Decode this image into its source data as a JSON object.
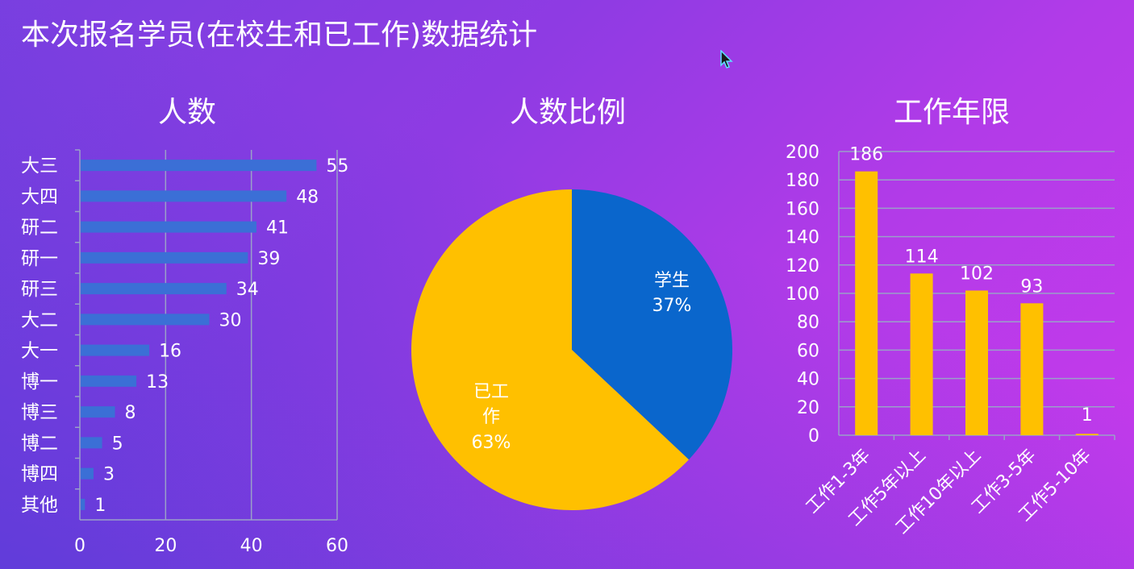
{
  "page": {
    "title": "本次报名学员(在校生和已工作)数据统计"
  },
  "chart_data": [
    {
      "type": "bar",
      "orientation": "horizontal",
      "title": "人数",
      "categories": [
        "大三",
        "大四",
        "研二",
        "研一",
        "研三",
        "大二",
        "大一",
        "博一",
        "博三",
        "博二",
        "博四",
        "其他"
      ],
      "values": [
        55,
        48,
        41,
        39,
        34,
        30,
        16,
        13,
        8,
        5,
        3,
        1
      ],
      "xlim": [
        0,
        60
      ],
      "xticks": [
        0,
        20,
        40,
        60
      ],
      "grid": true,
      "data_labels": true,
      "color": "#3b6fd6"
    },
    {
      "type": "pie",
      "title": "人数比例",
      "slices": [
        {
          "label": "学生",
          "value": 37,
          "value_label": "37%",
          "color": "#0a66cc"
        },
        {
          "label": "已工作",
          "value": 63,
          "value_label": "63%",
          "color": "#ffc000"
        }
      ],
      "start_angle_deg": 0,
      "direction": "clockwise"
    },
    {
      "type": "bar",
      "orientation": "vertical",
      "title": "工作年限",
      "categories": [
        "工作1-3年",
        "工作5年以上",
        "工作10年以上",
        "工作3-5年",
        "工作5-10年"
      ],
      "values": [
        186,
        114,
        102,
        93,
        1
      ],
      "ylim": [
        0,
        200
      ],
      "yticks": [
        0,
        20,
        40,
        60,
        80,
        100,
        120,
        140,
        160,
        180,
        200
      ],
      "grid": true,
      "data_labels": true,
      "color": "#ffc000"
    }
  ]
}
